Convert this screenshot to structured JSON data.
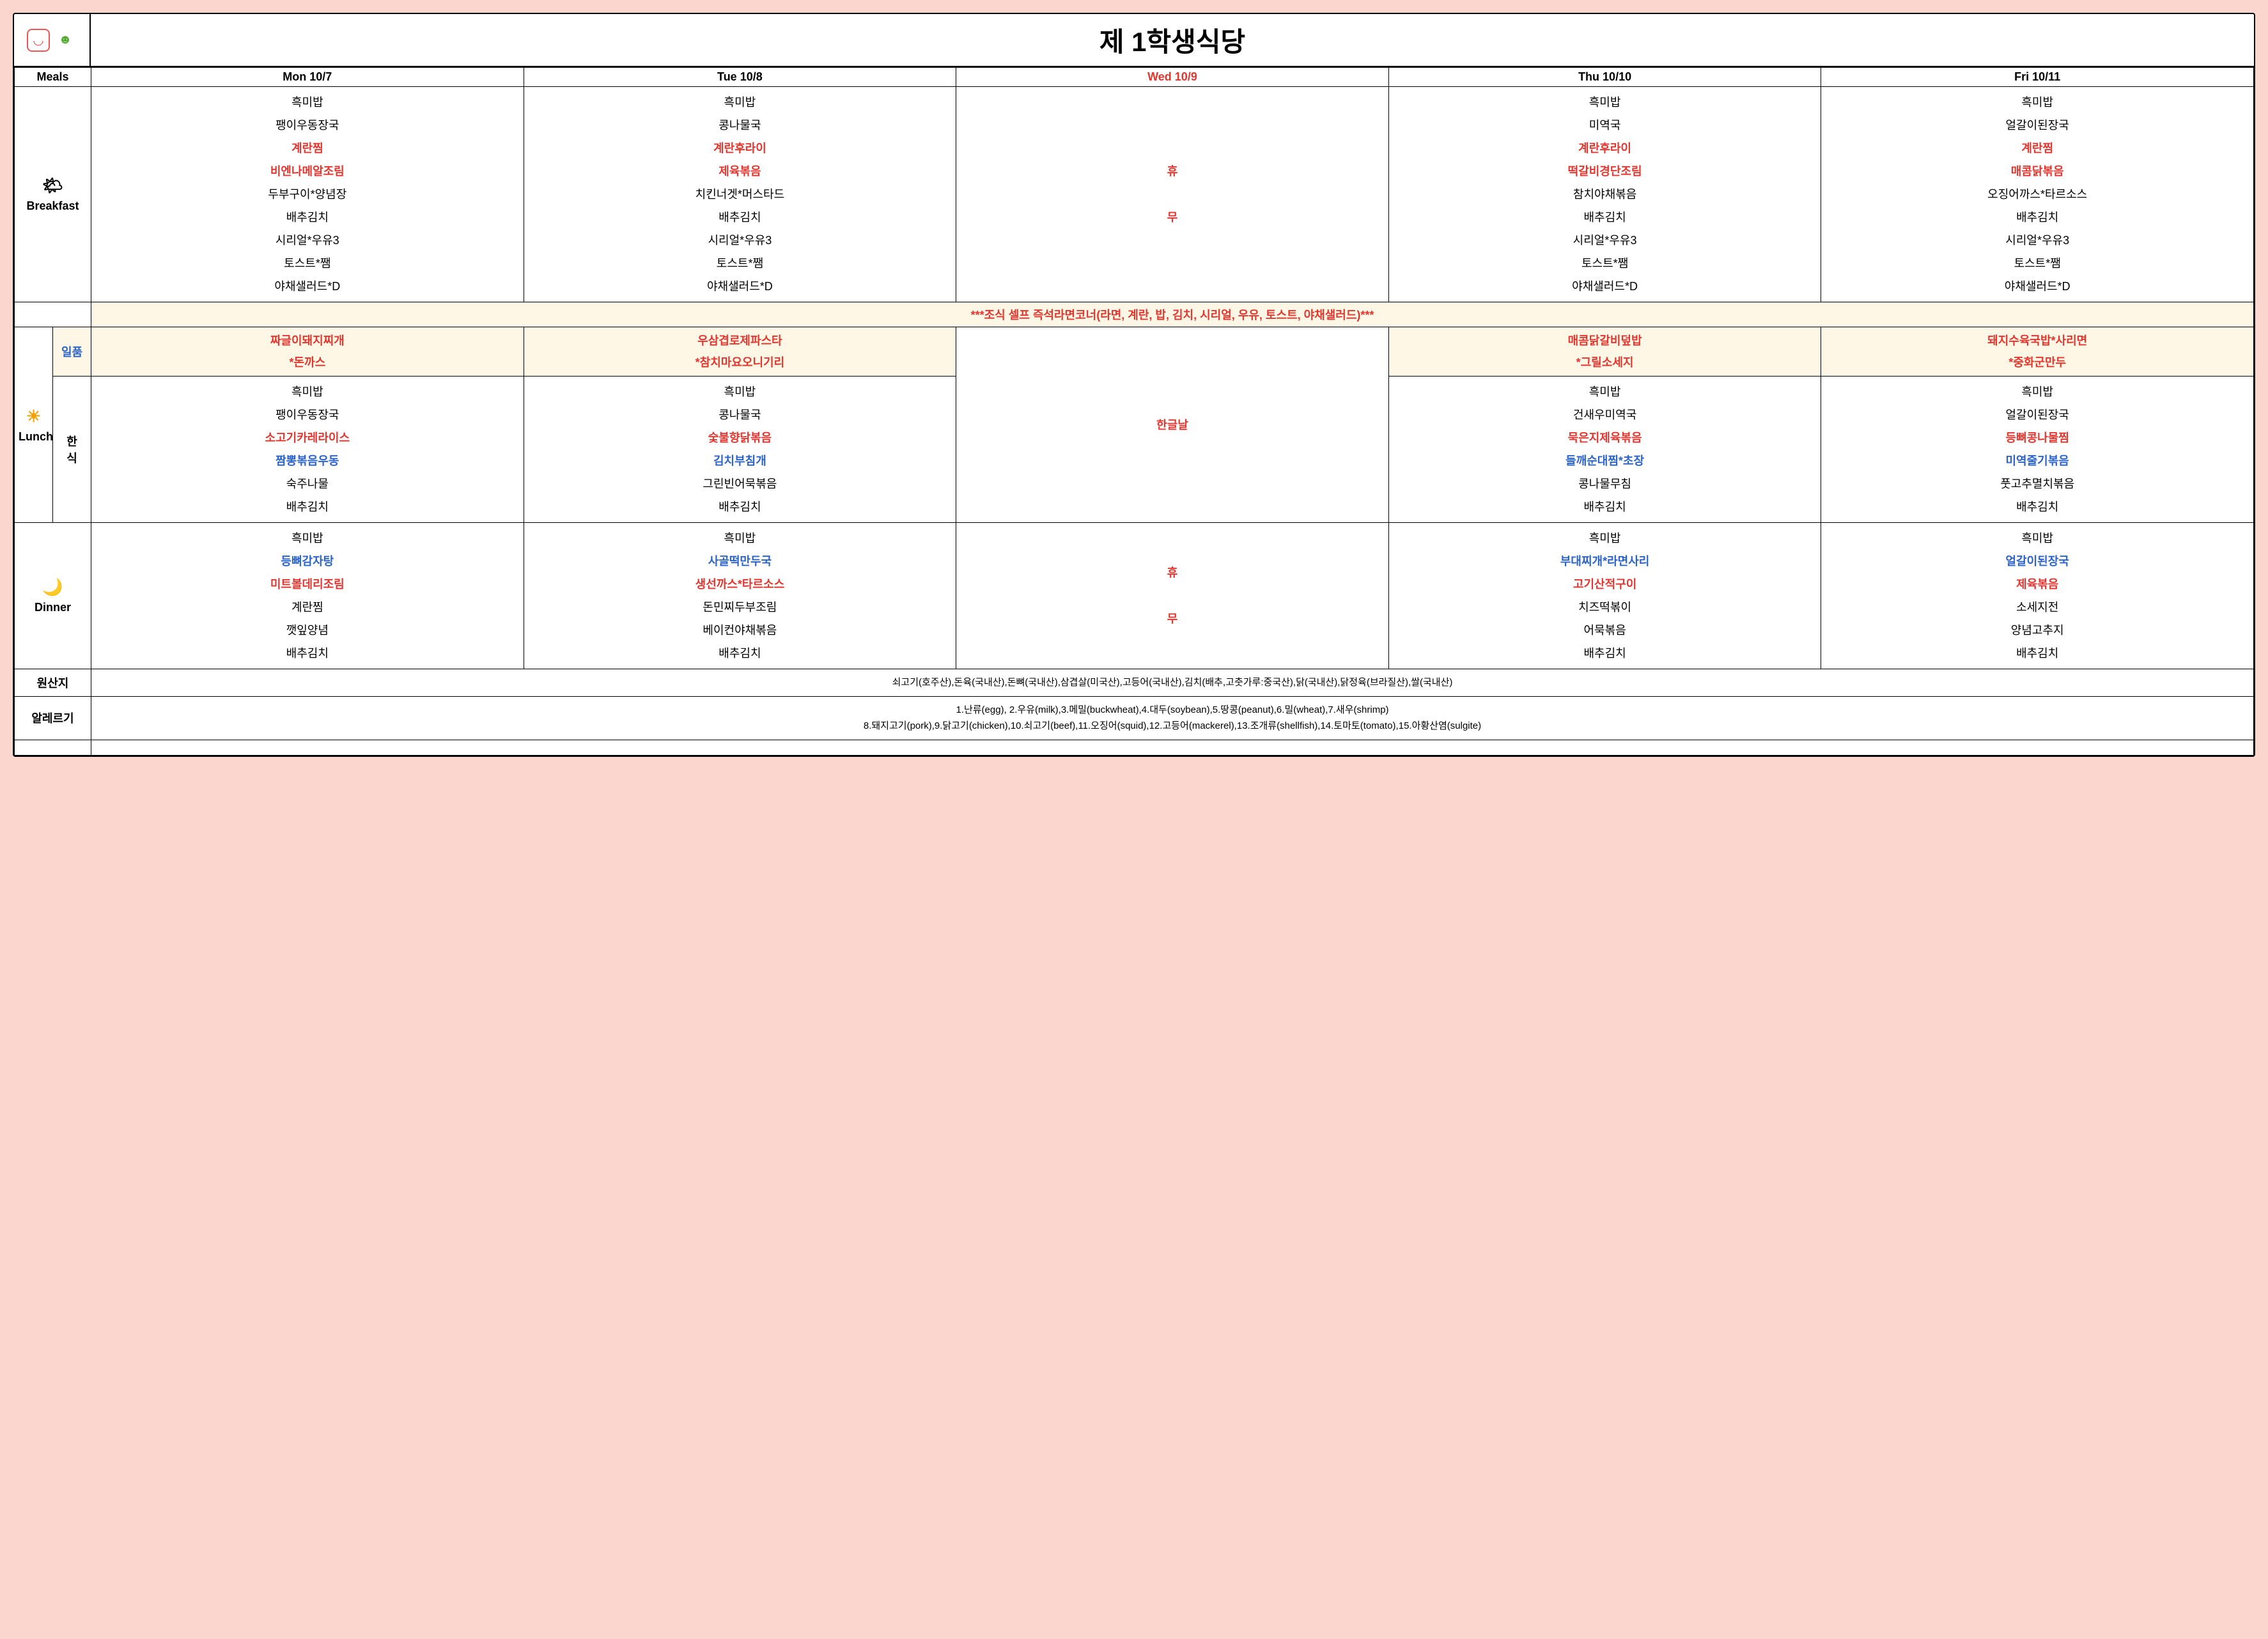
{
  "title": "제 1학생식당",
  "colors": {
    "page_bg": "#fbd6ce",
    "sheet_bg": "#ffffff",
    "border": "#000000",
    "highlight_bg": "#fff7e6",
    "text_red": "#e3362f",
    "text_blue": "#2a63c9",
    "text_black": "#000000"
  },
  "headers": {
    "meals": "Meals",
    "days": [
      {
        "label": "Mon 10/7",
        "color": "c-black"
      },
      {
        "label": "Tue 10/8",
        "color": "c-black"
      },
      {
        "label": "Wed 10/9",
        "color": "c-red"
      },
      {
        "label": "Thu 10/10",
        "color": "c-black"
      },
      {
        "label": "Fri 10/11",
        "color": "c-black"
      }
    ]
  },
  "meals": {
    "breakfast": {
      "label": "Breakfast",
      "icon": "🌤",
      "days": [
        [
          {
            "t": "흑미밥",
            "c": "c-black"
          },
          {
            "t": "팽이우동장국",
            "c": "c-black"
          },
          {
            "t": "계란찜",
            "c": "c-red"
          },
          {
            "t": "비엔나메알조림",
            "c": "c-red"
          },
          {
            "t": "두부구이*양념장",
            "c": "c-black"
          },
          {
            "t": "배추김치",
            "c": "c-black"
          },
          {
            "t": "시리얼*우유3",
            "c": "c-black"
          },
          {
            "t": "토스트*쨈",
            "c": "c-black"
          },
          {
            "t": "야채샐러드*D",
            "c": "c-black"
          }
        ],
        [
          {
            "t": "흑미밥",
            "c": "c-black"
          },
          {
            "t": "콩나물국",
            "c": "c-black"
          },
          {
            "t": "계란후라이",
            "c": "c-red"
          },
          {
            "t": "제육볶음",
            "c": "c-red"
          },
          {
            "t": "치킨너겟*머스타드",
            "c": "c-black"
          },
          {
            "t": "배추김치",
            "c": "c-black"
          },
          {
            "t": "시리얼*우유3",
            "c": "c-black"
          },
          {
            "t": "토스트*쨈",
            "c": "c-black"
          },
          {
            "t": "야채샐러드*D",
            "c": "c-black"
          }
        ],
        [
          {
            "t": "휴",
            "c": "c-red"
          },
          {
            "t": "",
            "c": "c-black"
          },
          {
            "t": "무",
            "c": "c-red"
          }
        ],
        [
          {
            "t": "흑미밥",
            "c": "c-black"
          },
          {
            "t": "미역국",
            "c": "c-black"
          },
          {
            "t": "계란후라이",
            "c": "c-red"
          },
          {
            "t": "떡갈비경단조림",
            "c": "c-red"
          },
          {
            "t": "참치야채볶음",
            "c": "c-black"
          },
          {
            "t": "배추김치",
            "c": "c-black"
          },
          {
            "t": "시리얼*우유3",
            "c": "c-black"
          },
          {
            "t": "토스트*쨈",
            "c": "c-black"
          },
          {
            "t": "야채샐러드*D",
            "c": "c-black"
          }
        ],
        [
          {
            "t": "흑미밥",
            "c": "c-black"
          },
          {
            "t": "얼갈이된장국",
            "c": "c-black"
          },
          {
            "t": "계란찜",
            "c": "c-red"
          },
          {
            "t": "매콤닭볶음",
            "c": "c-red"
          },
          {
            "t": "오징어까스*타르소스",
            "c": "c-black"
          },
          {
            "t": "배추김치",
            "c": "c-black"
          },
          {
            "t": "시리얼*우유3",
            "c": "c-black"
          },
          {
            "t": "토스트*쨈",
            "c": "c-black"
          },
          {
            "t": "야채샐러드*D",
            "c": "c-black"
          }
        ]
      ],
      "banner": "***조식 셀프 즉석라면코너(라면, 계란, 밥, 김치, 시리얼, 우유, 토스트, 야채샐러드)***"
    },
    "lunch": {
      "label": "Lunch",
      "icon": "☀",
      "ilpum_label": "일품",
      "hansik_label1": "한",
      "hansik_label2": "식",
      "ilpum": [
        [
          {
            "t": "짜글이돼지찌개",
            "c": "c-red"
          },
          {
            "t": "*돈까스",
            "c": "c-red"
          }
        ],
        [
          {
            "t": "우삼겹로제파스타",
            "c": "c-red"
          },
          {
            "t": "*참치마요오니기리",
            "c": "c-red"
          }
        ],
        [],
        [
          {
            "t": "매콤닭갈비덮밥",
            "c": "c-red"
          },
          {
            "t": "*그릴소세지",
            "c": "c-red"
          }
        ],
        [
          {
            "t": "돼지수육국밥*사리면",
            "c": "c-red"
          },
          {
            "t": "*중화군만두",
            "c": "c-red"
          }
        ]
      ],
      "hansik": [
        [
          {
            "t": "흑미밥",
            "c": "c-black"
          },
          {
            "t": "팽이우동장국",
            "c": "c-black"
          },
          {
            "t": "소고기카레라이스",
            "c": "c-red"
          },
          {
            "t": "짬뽕볶음우동",
            "c": "c-blue"
          },
          {
            "t": "숙주나물",
            "c": "c-black"
          },
          {
            "t": "배추김치",
            "c": "c-black"
          }
        ],
        [
          {
            "t": "흑미밥",
            "c": "c-black"
          },
          {
            "t": "콩나물국",
            "c": "c-black"
          },
          {
            "t": "숯불향닭볶음",
            "c": "c-red"
          },
          {
            "t": "김치부침개",
            "c": "c-blue"
          },
          {
            "t": "그린빈어묵볶음",
            "c": "c-black"
          },
          {
            "t": "배추김치",
            "c": "c-black"
          }
        ],
        [
          {
            "t": "한글날",
            "c": "c-red"
          }
        ],
        [
          {
            "t": "흑미밥",
            "c": "c-black"
          },
          {
            "t": "건새우미역국",
            "c": "c-black"
          },
          {
            "t": "묵은지제육볶음",
            "c": "c-red"
          },
          {
            "t": "들깨순대찜*초장",
            "c": "c-blue"
          },
          {
            "t": "콩나물무침",
            "c": "c-black"
          },
          {
            "t": "배추김치",
            "c": "c-black"
          }
        ],
        [
          {
            "t": "흑미밥",
            "c": "c-black"
          },
          {
            "t": "얼갈이된장국",
            "c": "c-black"
          },
          {
            "t": "등뼈콩나물찜",
            "c": "c-red"
          },
          {
            "t": "미역줄기볶음",
            "c": "c-blue"
          },
          {
            "t": "풋고추멸치볶음",
            "c": "c-black"
          },
          {
            "t": "배추김치",
            "c": "c-black"
          }
        ]
      ]
    },
    "dinner": {
      "label": "Dinner",
      "icon": "🌙",
      "days": [
        [
          {
            "t": "흑미밥",
            "c": "c-black"
          },
          {
            "t": "등뼈감자탕",
            "c": "c-blue"
          },
          {
            "t": "미트볼데리조림",
            "c": "c-red"
          },
          {
            "t": "계란찜",
            "c": "c-black"
          },
          {
            "t": "깻잎양념",
            "c": "c-black"
          },
          {
            "t": "배추김치",
            "c": "c-black"
          }
        ],
        [
          {
            "t": "흑미밥",
            "c": "c-black"
          },
          {
            "t": "사골떡만두국",
            "c": "c-blue"
          },
          {
            "t": "생선까스*타르소스",
            "c": "c-red"
          },
          {
            "t": "돈민찌두부조림",
            "c": "c-black"
          },
          {
            "t": "베이컨야채볶음",
            "c": "c-black"
          },
          {
            "t": "배추김치",
            "c": "c-black"
          }
        ],
        [
          {
            "t": "휴",
            "c": "c-red"
          },
          {
            "t": "",
            "c": "c-black"
          },
          {
            "t": "무",
            "c": "c-red"
          }
        ],
        [
          {
            "t": "흑미밥",
            "c": "c-black"
          },
          {
            "t": "부대찌개*라면사리",
            "c": "c-blue"
          },
          {
            "t": "고기산적구이",
            "c": "c-red"
          },
          {
            "t": "치즈떡볶이",
            "c": "c-black"
          },
          {
            "t": "어묵볶음",
            "c": "c-black"
          },
          {
            "t": "배추김치",
            "c": "c-black"
          }
        ],
        [
          {
            "t": "흑미밥",
            "c": "c-black"
          },
          {
            "t": "얼갈이된장국",
            "c": "c-blue"
          },
          {
            "t": "제육볶음",
            "c": "c-red"
          },
          {
            "t": "소세지전",
            "c": "c-black"
          },
          {
            "t": "양념고추지",
            "c": "c-black"
          },
          {
            "t": "배추김치",
            "c": "c-black"
          }
        ]
      ]
    }
  },
  "footer": {
    "origin_label": "원산지",
    "origin_text": "쇠고기(호주산),돈육(국내산),돈뼈(국내산),삼겹살(미국산),고등어(국내산),김치(배추,고춧가루:중국산),닭(국내산),닭정육(브라질산),쌀(국내산)",
    "allergy_label": "알레르기",
    "allergy_line1": "1.난류(egg), 2.우유(milk),3.메밀(buckwheat),4.대두(soybean),5.땅콩(peanut),6.밀(wheat),7.새우(shrimp)",
    "allergy_line2": "8.돼지고기(pork),9.닭고기(chicken),10.쇠고기(beef),11.오징어(squid),12.고등어(mackerel),13.조개류(shellfish),14.토마토(tomato),15.아황산염(sulgite)"
  }
}
